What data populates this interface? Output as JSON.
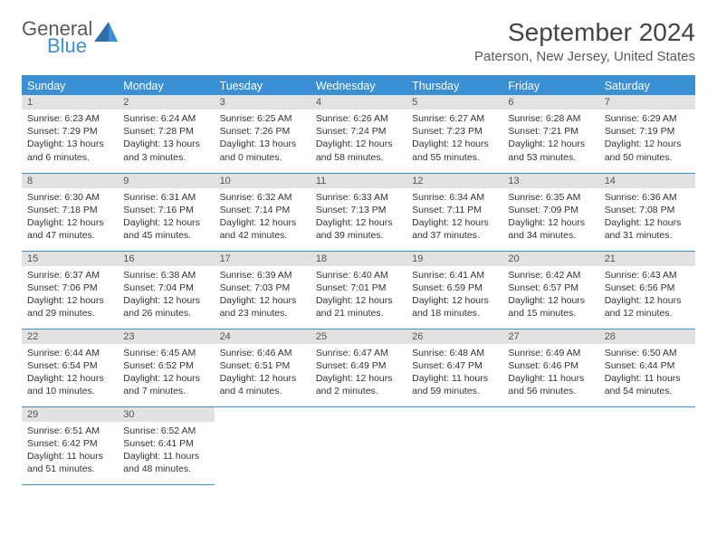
{
  "brand": {
    "word1": "General",
    "word2": "Blue"
  },
  "header": {
    "title": "September 2024",
    "location": "Paterson, New Jersey, United States"
  },
  "colors": {
    "accent": "#3b8fd4",
    "header_row_bg": "#3b8fd4",
    "header_row_fg": "#ffffff",
    "daynum_bg": "#e2e2e2",
    "text": "#333333"
  },
  "weekdays": [
    "Sunday",
    "Monday",
    "Tuesday",
    "Wednesday",
    "Thursday",
    "Friday",
    "Saturday"
  ],
  "days": [
    {
      "n": "1",
      "sunrise": "Sunrise: 6:23 AM",
      "sunset": "Sunset: 7:29 PM",
      "day1": "Daylight: 13 hours",
      "day2": "and 6 minutes."
    },
    {
      "n": "2",
      "sunrise": "Sunrise: 6:24 AM",
      "sunset": "Sunset: 7:28 PM",
      "day1": "Daylight: 13 hours",
      "day2": "and 3 minutes."
    },
    {
      "n": "3",
      "sunrise": "Sunrise: 6:25 AM",
      "sunset": "Sunset: 7:26 PM",
      "day1": "Daylight: 13 hours",
      "day2": "and 0 minutes."
    },
    {
      "n": "4",
      "sunrise": "Sunrise: 6:26 AM",
      "sunset": "Sunset: 7:24 PM",
      "day1": "Daylight: 12 hours",
      "day2": "and 58 minutes."
    },
    {
      "n": "5",
      "sunrise": "Sunrise: 6:27 AM",
      "sunset": "Sunset: 7:23 PM",
      "day1": "Daylight: 12 hours",
      "day2": "and 55 minutes."
    },
    {
      "n": "6",
      "sunrise": "Sunrise: 6:28 AM",
      "sunset": "Sunset: 7:21 PM",
      "day1": "Daylight: 12 hours",
      "day2": "and 53 minutes."
    },
    {
      "n": "7",
      "sunrise": "Sunrise: 6:29 AM",
      "sunset": "Sunset: 7:19 PM",
      "day1": "Daylight: 12 hours",
      "day2": "and 50 minutes."
    },
    {
      "n": "8",
      "sunrise": "Sunrise: 6:30 AM",
      "sunset": "Sunset: 7:18 PM",
      "day1": "Daylight: 12 hours",
      "day2": "and 47 minutes."
    },
    {
      "n": "9",
      "sunrise": "Sunrise: 6:31 AM",
      "sunset": "Sunset: 7:16 PM",
      "day1": "Daylight: 12 hours",
      "day2": "and 45 minutes."
    },
    {
      "n": "10",
      "sunrise": "Sunrise: 6:32 AM",
      "sunset": "Sunset: 7:14 PM",
      "day1": "Daylight: 12 hours",
      "day2": "and 42 minutes."
    },
    {
      "n": "11",
      "sunrise": "Sunrise: 6:33 AM",
      "sunset": "Sunset: 7:13 PM",
      "day1": "Daylight: 12 hours",
      "day2": "and 39 minutes."
    },
    {
      "n": "12",
      "sunrise": "Sunrise: 6:34 AM",
      "sunset": "Sunset: 7:11 PM",
      "day1": "Daylight: 12 hours",
      "day2": "and 37 minutes."
    },
    {
      "n": "13",
      "sunrise": "Sunrise: 6:35 AM",
      "sunset": "Sunset: 7:09 PM",
      "day1": "Daylight: 12 hours",
      "day2": "and 34 minutes."
    },
    {
      "n": "14",
      "sunrise": "Sunrise: 6:36 AM",
      "sunset": "Sunset: 7:08 PM",
      "day1": "Daylight: 12 hours",
      "day2": "and 31 minutes."
    },
    {
      "n": "15",
      "sunrise": "Sunrise: 6:37 AM",
      "sunset": "Sunset: 7:06 PM",
      "day1": "Daylight: 12 hours",
      "day2": "and 29 minutes."
    },
    {
      "n": "16",
      "sunrise": "Sunrise: 6:38 AM",
      "sunset": "Sunset: 7:04 PM",
      "day1": "Daylight: 12 hours",
      "day2": "and 26 minutes."
    },
    {
      "n": "17",
      "sunrise": "Sunrise: 6:39 AM",
      "sunset": "Sunset: 7:03 PM",
      "day1": "Daylight: 12 hours",
      "day2": "and 23 minutes."
    },
    {
      "n": "18",
      "sunrise": "Sunrise: 6:40 AM",
      "sunset": "Sunset: 7:01 PM",
      "day1": "Daylight: 12 hours",
      "day2": "and 21 minutes."
    },
    {
      "n": "19",
      "sunrise": "Sunrise: 6:41 AM",
      "sunset": "Sunset: 6:59 PM",
      "day1": "Daylight: 12 hours",
      "day2": "and 18 minutes."
    },
    {
      "n": "20",
      "sunrise": "Sunrise: 6:42 AM",
      "sunset": "Sunset: 6:57 PM",
      "day1": "Daylight: 12 hours",
      "day2": "and 15 minutes."
    },
    {
      "n": "21",
      "sunrise": "Sunrise: 6:43 AM",
      "sunset": "Sunset: 6:56 PM",
      "day1": "Daylight: 12 hours",
      "day2": "and 12 minutes."
    },
    {
      "n": "22",
      "sunrise": "Sunrise: 6:44 AM",
      "sunset": "Sunset: 6:54 PM",
      "day1": "Daylight: 12 hours",
      "day2": "and 10 minutes."
    },
    {
      "n": "23",
      "sunrise": "Sunrise: 6:45 AM",
      "sunset": "Sunset: 6:52 PM",
      "day1": "Daylight: 12 hours",
      "day2": "and 7 minutes."
    },
    {
      "n": "24",
      "sunrise": "Sunrise: 6:46 AM",
      "sunset": "Sunset: 6:51 PM",
      "day1": "Daylight: 12 hours",
      "day2": "and 4 minutes."
    },
    {
      "n": "25",
      "sunrise": "Sunrise: 6:47 AM",
      "sunset": "Sunset: 6:49 PM",
      "day1": "Daylight: 12 hours",
      "day2": "and 2 minutes."
    },
    {
      "n": "26",
      "sunrise": "Sunrise: 6:48 AM",
      "sunset": "Sunset: 6:47 PM",
      "day1": "Daylight: 11 hours",
      "day2": "and 59 minutes."
    },
    {
      "n": "27",
      "sunrise": "Sunrise: 6:49 AM",
      "sunset": "Sunset: 6:46 PM",
      "day1": "Daylight: 11 hours",
      "day2": "and 56 minutes."
    },
    {
      "n": "28",
      "sunrise": "Sunrise: 6:50 AM",
      "sunset": "Sunset: 6:44 PM",
      "day1": "Daylight: 11 hours",
      "day2": "and 54 minutes."
    },
    {
      "n": "29",
      "sunrise": "Sunrise: 6:51 AM",
      "sunset": "Sunset: 6:42 PM",
      "day1": "Daylight: 11 hours",
      "day2": "and 51 minutes."
    },
    {
      "n": "30",
      "sunrise": "Sunrise: 6:52 AM",
      "sunset": "Sunset: 6:41 PM",
      "day1": "Daylight: 11 hours",
      "day2": "and 48 minutes."
    }
  ]
}
